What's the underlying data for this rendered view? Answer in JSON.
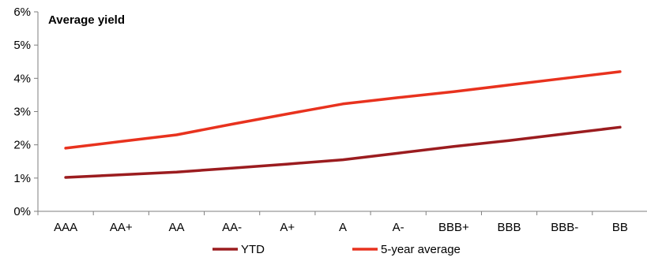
{
  "chart_data": {
    "type": "line",
    "title": "Average yield",
    "xlabel": "",
    "ylabel": "",
    "categories": [
      "AAA",
      "AA+",
      "AA",
      "AA-",
      "A+",
      "A",
      "A-",
      "BBB+",
      "BBB",
      "BBB-",
      "BB"
    ],
    "ylim": [
      0,
      6
    ],
    "yticks": [
      "0%",
      "1%",
      "2%",
      "3%",
      "4%",
      "5%",
      "6%"
    ],
    "grid": false,
    "legend": "bottom",
    "series": [
      {
        "name": "YTD",
        "color": "#9b1c1f",
        "values": [
          1.02,
          1.1,
          1.18,
          1.3,
          1.42,
          1.55,
          1.75,
          1.95,
          2.13,
          2.33,
          2.53
        ]
      },
      {
        "name": "5-year average",
        "color": "#e8321e",
        "values": [
          1.9,
          2.1,
          2.3,
          2.62,
          2.93,
          3.23,
          3.42,
          3.6,
          3.8,
          4.0,
          4.2
        ]
      }
    ]
  }
}
